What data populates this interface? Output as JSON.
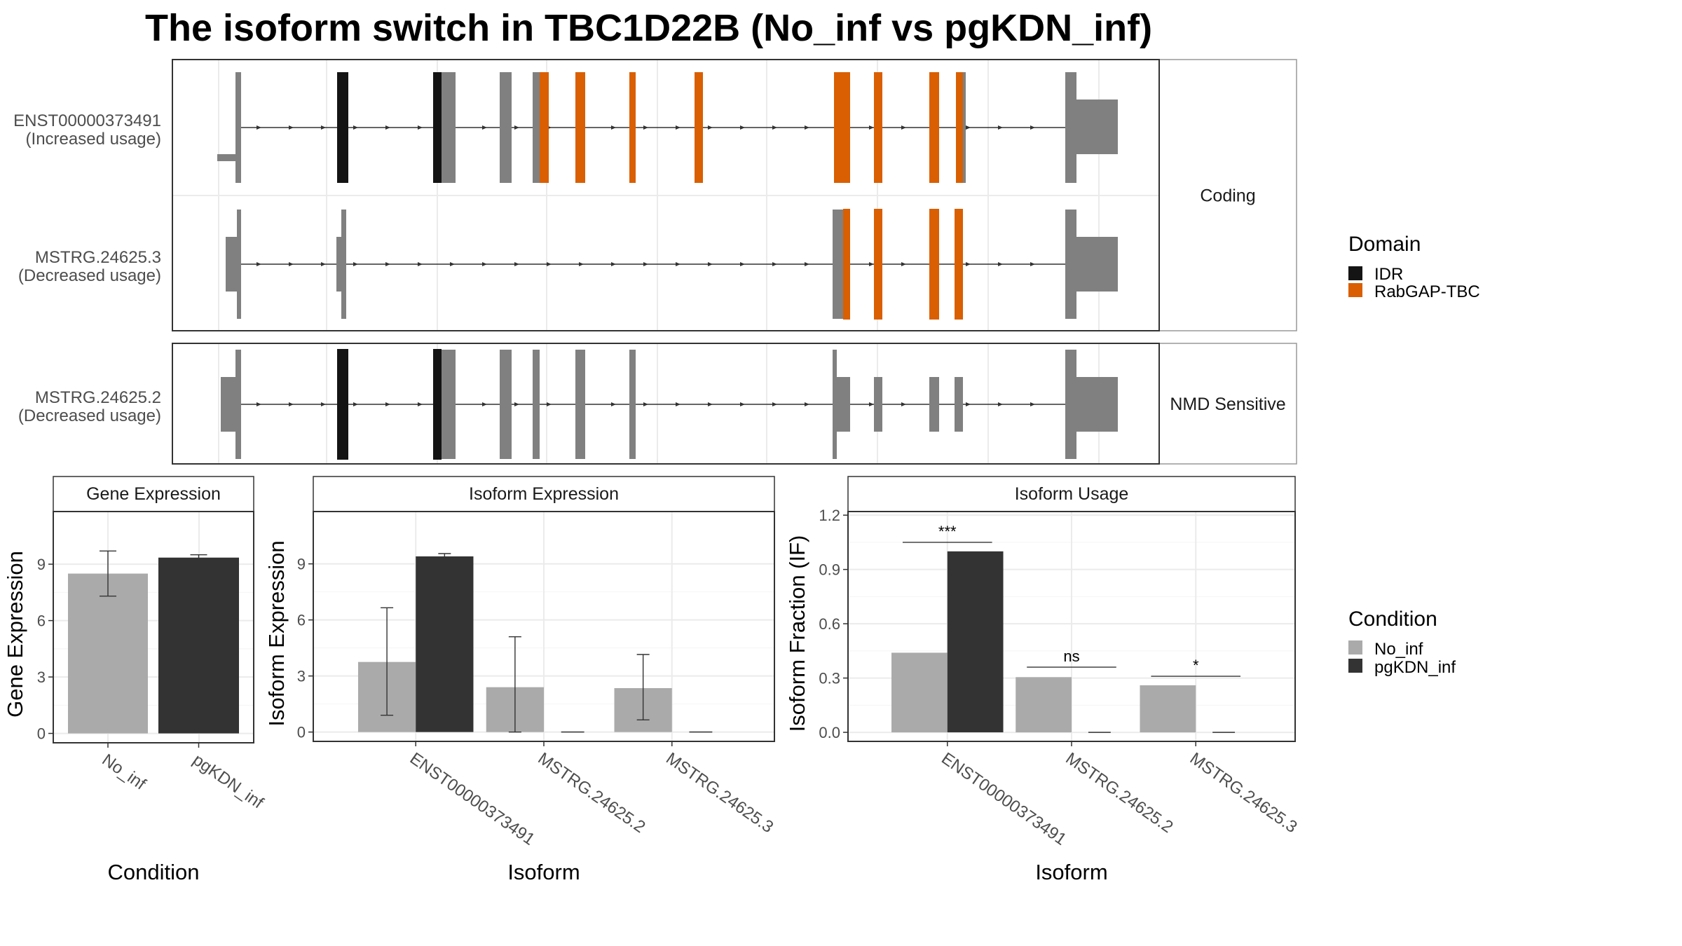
{
  "title": "The isoform switch in TBC1D22B (No_inf vs pgKDN_inf)",
  "colors": {
    "exon": "#808080",
    "IDR": "#141414",
    "RabGAP-TBC": "#D95F02",
    "No_inf": "#AAAAAA",
    "pgKDN_inf": "#333333",
    "panel_border": "#333333",
    "strip_border": "#999999",
    "grid": "#EBEBEB"
  },
  "structure": {
    "facets": [
      {
        "label": "Coding",
        "isoforms": [
          {
            "name": "ENST00000373491",
            "usage": "(Increased usage)"
          },
          {
            "name": "MSTRG.24625.3",
            "usage": "(Decreased usage)"
          }
        ]
      },
      {
        "label": "NMD Sensitive",
        "isoforms": [
          {
            "name": "MSTRG.24625.2",
            "usage": "(Decreased usage)"
          }
        ]
      }
    ],
    "legend": {
      "title": "Domain",
      "items": [
        "IDR",
        "RabGAP-TBC"
      ]
    }
  },
  "chart_data": [
    {
      "type": "bar",
      "title": "Gene Expression",
      "xlabel": "Condition",
      "ylabel": "Gene Expression",
      "categories": [
        "No_inf",
        "pgKDN_inf"
      ],
      "values": [
        8.5,
        9.35
      ],
      "error": [
        [
          7.3,
          9.7
        ],
        [
          9.2,
          9.5
        ]
      ],
      "ylim": [
        -0.5,
        11.8
      ],
      "yticks": [
        0,
        3,
        6,
        9
      ],
      "ytick_labels": [
        "0",
        "3",
        "6",
        "9"
      ]
    },
    {
      "type": "bar",
      "title": "Isoform Expression",
      "xlabel": "Isoform",
      "ylabel": "Isoform Expression",
      "categories": [
        "ENST00000373491",
        "MSTRG.24625.2",
        "MSTRG.24625.3"
      ],
      "series": [
        {
          "name": "No_inf",
          "values": [
            3.75,
            2.4,
            2.35
          ],
          "error": [
            [
              0.9,
              6.65
            ],
            [
              0.0,
              5.1
            ],
            [
              0.65,
              4.15
            ]
          ]
        },
        {
          "name": "pgKDN_inf",
          "values": [
            9.4,
            0.0,
            0.0
          ],
          "error": [
            [
              9.3,
              9.55
            ],
            [
              0.0,
              0.0
            ],
            [
              0.0,
              0.0
            ]
          ]
        }
      ],
      "ylim": [
        -0.5,
        11.8
      ],
      "yticks": [
        0,
        3,
        6,
        9
      ],
      "ytick_labels": [
        "0",
        "3",
        "6",
        "9"
      ]
    },
    {
      "type": "bar",
      "title": "Isoform Usage",
      "xlabel": "Isoform",
      "ylabel": "Isoform Fraction (IF)",
      "categories": [
        "ENST00000373491",
        "MSTRG.24625.2",
        "MSTRG.24625.3"
      ],
      "series": [
        {
          "name": "No_inf",
          "values": [
            0.44,
            0.305,
            0.26
          ]
        },
        {
          "name": "pgKDN_inf",
          "values": [
            1.0,
            0.0,
            0.0
          ]
        }
      ],
      "significance": [
        "***",
        "ns",
        "*"
      ],
      "sig_y": [
        1.05,
        0.36,
        0.31
      ],
      "ylim": [
        -0.05,
        1.22
      ],
      "yticks": [
        0,
        0.3,
        0.6,
        0.9,
        1.2
      ],
      "ytick_labels": [
        "0.0",
        "0.3",
        "0.6",
        "0.9",
        "1.2"
      ]
    }
  ],
  "condition_legend": {
    "title": "Condition",
    "items": [
      "No_inf",
      "pgKDN_inf"
    ]
  }
}
